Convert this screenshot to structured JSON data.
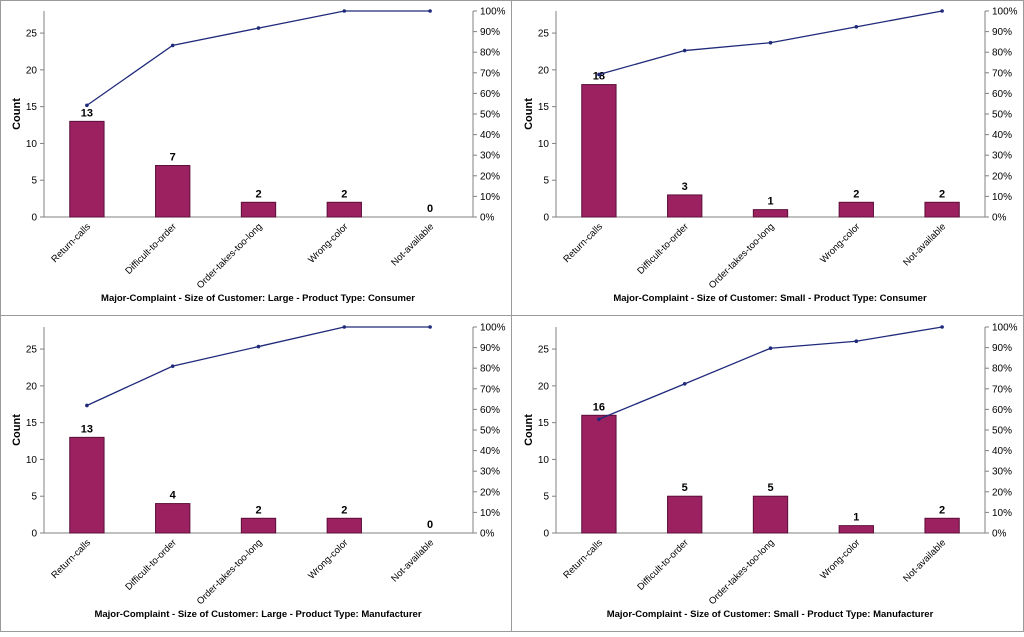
{
  "chart_data": [
    {
      "type": "bar",
      "title": "Major-Complaint - Size of Customer: Large - Product Type: Consumer",
      "xlabel": "",
      "ylabel": "Count",
      "ylim": [
        0,
        28
      ],
      "y2lim": [
        0,
        100
      ],
      "categories": [
        "Return-calls",
        "Difficult-to-order",
        "Order-takes-too-long",
        "Wrong-color",
        "Not-available"
      ],
      "values": [
        13,
        7,
        2,
        2,
        0
      ],
      "cumulative_percent": [
        54.2,
        83.3,
        91.7,
        100,
        100
      ],
      "yticks": [
        0,
        5,
        10,
        15,
        20,
        25
      ],
      "y2ticks": [
        "0%",
        "10%",
        "20%",
        "30%",
        "40%",
        "50%",
        "60%",
        "70%",
        "80%",
        "90%",
        "100%"
      ],
      "colors": {
        "bar": "#9b2161",
        "bar_edge": "#5c0f39",
        "line": "#1f2a7a"
      }
    },
    {
      "type": "bar",
      "title": "Major-Complaint - Size of Customer: Small - Product Type: Consumer",
      "xlabel": "",
      "ylabel": "Count",
      "ylim": [
        0,
        28
      ],
      "y2lim": [
        0,
        100
      ],
      "categories": [
        "Return-calls",
        "Difficult-to-order",
        "Order-takes-too-long",
        "Wrong-color",
        "Not-available"
      ],
      "values": [
        18,
        3,
        1,
        2,
        2
      ],
      "cumulative_percent": [
        69.2,
        80.8,
        84.6,
        92.3,
        100
      ],
      "yticks": [
        0,
        5,
        10,
        15,
        20,
        25
      ],
      "y2ticks": [
        "0%",
        "10%",
        "20%",
        "30%",
        "40%",
        "50%",
        "60%",
        "70%",
        "80%",
        "90%",
        "100%"
      ],
      "colors": {
        "bar": "#9b2161",
        "bar_edge": "#5c0f39",
        "line": "#1f2a7a"
      }
    },
    {
      "type": "bar",
      "title": "Major-Complaint - Size of Customer: Large - Product Type: Manufacturer",
      "xlabel": "",
      "ylabel": "Count",
      "ylim": [
        0,
        28
      ],
      "y2lim": [
        0,
        100
      ],
      "categories": [
        "Return-calls",
        "Difficult-to-order",
        "Order-takes-too-long",
        "Wrong-color",
        "Not-available"
      ],
      "values": [
        13,
        4,
        2,
        2,
        0
      ],
      "cumulative_percent": [
        61.9,
        81.0,
        90.5,
        100,
        100
      ],
      "yticks": [
        0,
        5,
        10,
        15,
        20,
        25
      ],
      "y2ticks": [
        "0%",
        "10%",
        "20%",
        "30%",
        "40%",
        "50%",
        "60%",
        "70%",
        "80%",
        "90%",
        "100%"
      ],
      "colors": {
        "bar": "#9b2161",
        "bar_edge": "#5c0f39",
        "line": "#1f2a7a"
      }
    },
    {
      "type": "bar",
      "title": "Major-Complaint - Size of Customer: Small - Product Type: Manufacturer",
      "xlabel": "",
      "ylabel": "Count",
      "ylim": [
        0,
        28
      ],
      "y2lim": [
        0,
        100
      ],
      "categories": [
        "Return-calls",
        "Difficult-to-order",
        "Order-takes-too-long",
        "Wrong-color",
        "Not-available"
      ],
      "values": [
        16,
        5,
        5,
        1,
        2
      ],
      "cumulative_percent": [
        55.2,
        72.4,
        89.7,
        93.1,
        100
      ],
      "yticks": [
        0,
        5,
        10,
        15,
        20,
        25
      ],
      "y2ticks": [
        "0%",
        "10%",
        "20%",
        "30%",
        "40%",
        "50%",
        "60%",
        "70%",
        "80%",
        "90%",
        "100%"
      ],
      "colors": {
        "bar": "#9b2161",
        "bar_edge": "#5c0f39",
        "line": "#1f2a7a"
      }
    }
  ]
}
